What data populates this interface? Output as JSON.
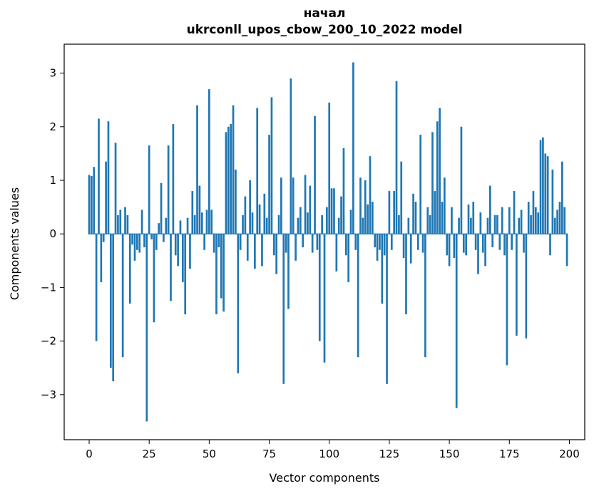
{
  "chart_data": {
    "type": "bar",
    "title_line1": "начал",
    "title_line2": "ukrconll_upos_cbow_200_10_2022 model",
    "xlabel": "Vector components",
    "ylabel": "Components values",
    "bar_color": "#1f77b4",
    "spine_color": "#000000",
    "background": "#ffffff",
    "grid": false,
    "legend": null,
    "bar_width": 0.8,
    "x_start": 0,
    "xlim": [
      -10.4,
      206.4
    ],
    "ylim": [
      -3.84,
      3.54
    ],
    "xticks": [
      0,
      25,
      50,
      75,
      100,
      125,
      150,
      175,
      200
    ],
    "yticks": [
      3,
      2,
      1,
      0,
      -1,
      -2,
      -3
    ],
    "ytick_labels": [
      "3",
      "2",
      "1",
      "0",
      "−1",
      "−2",
      "−3"
    ],
    "values": [
      1.1,
      1.08,
      1.25,
      -2.0,
      2.15,
      -0.9,
      -0.15,
      1.35,
      2.1,
      -2.5,
      -2.75,
      1.7,
      0.35,
      0.45,
      -2.3,
      0.5,
      0.35,
      -1.3,
      -0.2,
      -0.5,
      -0.3,
      -0.35,
      0.45,
      -0.25,
      -3.5,
      1.65,
      -0.1,
      -1.65,
      -0.3,
      0.2,
      0.95,
      -0.15,
      0.3,
      1.65,
      -1.25,
      2.05,
      -0.4,
      -0.6,
      0.25,
      -0.9,
      -1.5,
      0.3,
      -0.65,
      0.8,
      0.35,
      2.4,
      0.9,
      0.4,
      -0.3,
      0.45,
      2.7,
      0.45,
      -0.35,
      -1.5,
      -0.25,
      -1.2,
      -1.45,
      1.9,
      2.0,
      2.05,
      2.4,
      1.2,
      -2.6,
      -0.3,
      0.35,
      0.7,
      -0.5,
      1.0,
      0.4,
      -0.65,
      2.35,
      0.55,
      -0.6,
      0.75,
      0.3,
      1.85,
      2.55,
      -0.4,
      -0.75,
      0.35,
      1.05,
      -2.8,
      -0.35,
      -1.4,
      2.9,
      1.05,
      -0.5,
      0.3,
      0.5,
      -0.25,
      1.1,
      0.4,
      0.9,
      -0.35,
      2.2,
      -0.3,
      -2.0,
      0.35,
      -2.4,
      0.5,
      2.45,
      0.85,
      0.85,
      -0.7,
      0.3,
      0.7,
      1.6,
      -0.4,
      -0.9,
      0.45,
      3.2,
      -0.3,
      -2.3,
      1.05,
      0.3,
      1.0,
      0.55,
      1.45,
      0.6,
      -0.25,
      -0.5,
      -0.3,
      -1.3,
      -0.4,
      -2.8,
      0.8,
      -0.3,
      0.8,
      2.85,
      0.35,
      1.35,
      -0.45,
      -1.5,
      0.3,
      -0.55,
      0.75,
      0.6,
      -0.3,
      1.85,
      -0.35,
      -2.3,
      0.5,
      0.35,
      1.9,
      0.8,
      2.1,
      2.35,
      0.6,
      1.05,
      -0.4,
      -0.6,
      0.5,
      -0.45,
      -3.25,
      0.3,
      2.0,
      -0.35,
      -0.4,
      0.55,
      0.3,
      0.6,
      -0.3,
      -0.75,
      0.4,
      -0.35,
      -0.6,
      0.3,
      0.9,
      -0.25,
      0.35,
      0.35,
      -0.3,
      0.5,
      -0.4,
      -2.45,
      0.5,
      -0.3,
      0.8,
      -1.9,
      0.3,
      0.45,
      -0.35,
      -1.95,
      0.6,
      0.35,
      0.8,
      0.5,
      0.4,
      1.75,
      1.8,
      1.5,
      1.45,
      -0.4,
      1.2,
      0.3,
      0.45,
      0.6,
      1.35,
      0.5,
      -0.6
    ]
  }
}
